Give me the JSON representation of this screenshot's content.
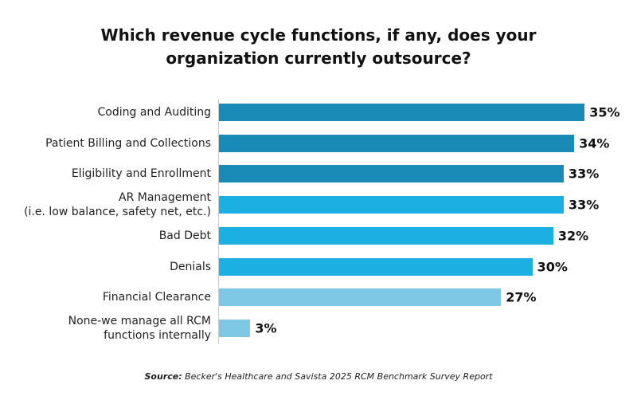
{
  "chart_data": {
    "type": "bar",
    "orientation": "horizontal",
    "title": "Which revenue cycle functions, if any, does your\norganization currently outsource?",
    "categories": [
      "Coding and Auditing",
      "Patient Billing and Collections",
      "Eligibility and Enrollment",
      "AR Management\n(i.e. low balance, safety net, etc.)",
      "Bad Debt",
      "Denials",
      "Financial Clearance",
      "None-we manage all RCM\nfunctions internally"
    ],
    "values": [
      35,
      34,
      33,
      33,
      32,
      30,
      27,
      3
    ],
    "value_labels": [
      "35%",
      "34%",
      "33%",
      "33%",
      "32%",
      "30%",
      "27%",
      "3%"
    ],
    "colors": [
      "#1a8bb6",
      "#1a8bb6",
      "#1a8bb6",
      "#1cb0e2",
      "#1cb0e2",
      "#1cb0e2",
      "#7ec8e6",
      "#7ec8e6"
    ],
    "source_label": "Source:",
    "source_text": "Becker's Healthcare and Savista 2025 RCM Benchmark Survey Report"
  }
}
